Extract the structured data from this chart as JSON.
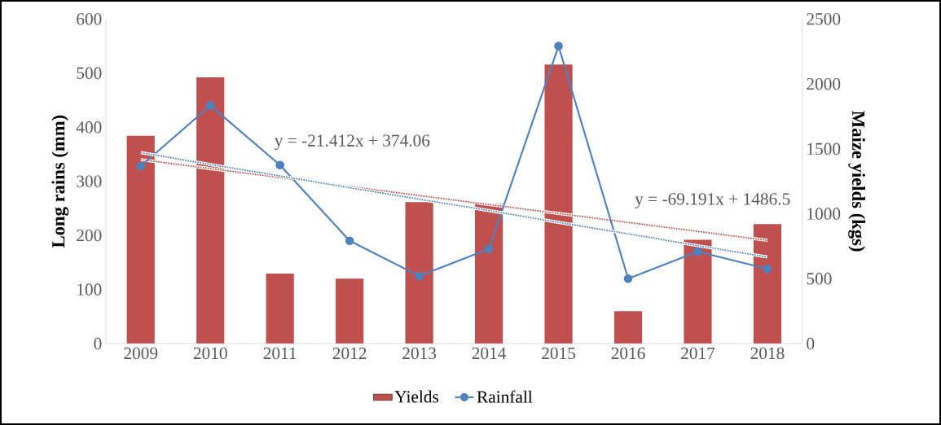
{
  "chart_data": {
    "type": "bar",
    "xlabel": null,
    "ylabel": "Long rains (mm)",
    "y2label": "Maize yields (kgs)",
    "categories": [
      "2009",
      "2010",
      "2011",
      "2012",
      "2013",
      "2014",
      "2015",
      "2016",
      "2017",
      "2018"
    ],
    "series": [
      {
        "name": "Yields",
        "axis": "y2",
        "color": "#c0504d",
        "values": [
          1600,
          2050,
          540,
          500,
          1090,
          1075,
          2150,
          250,
          800,
          920
        ]
      },
      {
        "name": "Rainfall",
        "type": "line",
        "color": "#4f81bd",
        "marker": "circle",
        "line_style": "solid",
        "values": [
          328,
          440,
          330,
          190,
          125,
          175,
          550,
          120,
          170,
          138
        ]
      },
      {
        "type": "line",
        "color": "#4f81bd",
        "marker": "none",
        "line_style": "dotted",
        "values": [
          353,
          331,
          310,
          288,
          267,
          246,
          224,
          203,
          181,
          160
        ]
      },
      {
        "type": "line",
        "axis": "y2",
        "color": "#c0504d",
        "marker": "none",
        "line_style": "dotted",
        "values": [
          1417,
          1348,
          1279,
          1210,
          1140,
          1071,
          1002,
          933,
          864,
          795
        ]
      }
    ],
    "ylim": [
      0,
      600
    ],
    "yticks": [
      0,
      100,
      200,
      300,
      400,
      500,
      600
    ],
    "y2lim": [
      0,
      2500
    ],
    "y2ticks": [
      0,
      500,
      1000,
      1500,
      2000,
      2500
    ],
    "annotations": [
      "y = -21.412x + 374.06",
      "y = -69.191x + 1486.5"
    ],
    "legend": "bottom",
    "grid": false
  }
}
